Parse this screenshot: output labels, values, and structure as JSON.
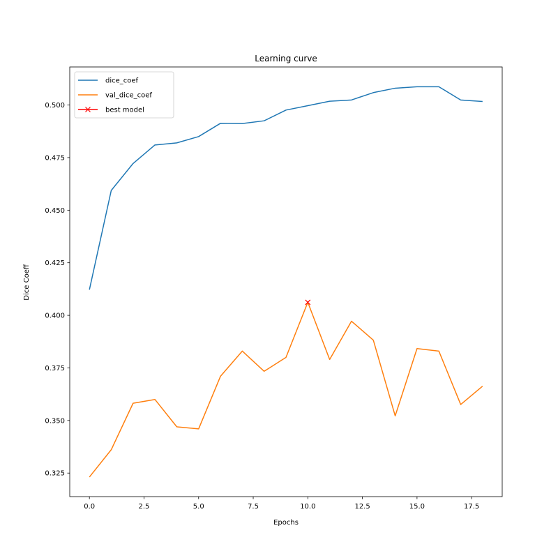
{
  "chart_data": {
    "type": "line",
    "title": "Learning curve",
    "xlabel": "Epochs",
    "ylabel": "Dice Coeff",
    "xlim": [
      -0.9,
      18.9
    ],
    "ylim": [
      0.3138,
      0.5181
    ],
    "xticks": [
      0.0,
      2.5,
      5.0,
      7.5,
      10.0,
      12.5,
      15.0,
      17.5
    ],
    "xtick_labels": [
      "0.0",
      "2.5",
      "5.0",
      "7.5",
      "10.0",
      "12.5",
      "15.0",
      "17.5"
    ],
    "yticks": [
      0.325,
      0.35,
      0.375,
      0.4,
      0.425,
      0.45,
      0.475,
      0.5
    ],
    "ytick_labels": [
      "0.325",
      "0.350",
      "0.375",
      "0.400",
      "0.425",
      "0.450",
      "0.475",
      "0.500"
    ],
    "grid": false,
    "legend_position": "top-left",
    "x": [
      0,
      1,
      2,
      3,
      4,
      5,
      6,
      7,
      8,
      9,
      10,
      11,
      12,
      13,
      14,
      15,
      16,
      17,
      18
    ],
    "series": [
      {
        "name": "dice_coef",
        "color": "#1f77b4",
        "values": [
          0.4122,
          0.4594,
          0.4722,
          0.481,
          0.482,
          0.485,
          0.4913,
          0.4912,
          0.4925,
          0.4976,
          0.4997,
          0.5018,
          0.5024,
          0.5059,
          0.508,
          0.5087,
          0.5087,
          0.5024,
          0.5017
        ]
      },
      {
        "name": "val_dice_coef",
        "color": "#ff7f0e",
        "values": [
          0.3231,
          0.3361,
          0.3582,
          0.36,
          0.347,
          0.346,
          0.371,
          0.383,
          0.3734,
          0.38,
          0.4062,
          0.379,
          0.3972,
          0.3882,
          0.3522,
          0.3842,
          0.383,
          0.3576,
          0.3663
        ]
      }
    ],
    "markers": [
      {
        "name": "best model",
        "color": "#ff0000",
        "symbol": "x",
        "x": 10,
        "y": 0.4062
      }
    ]
  }
}
